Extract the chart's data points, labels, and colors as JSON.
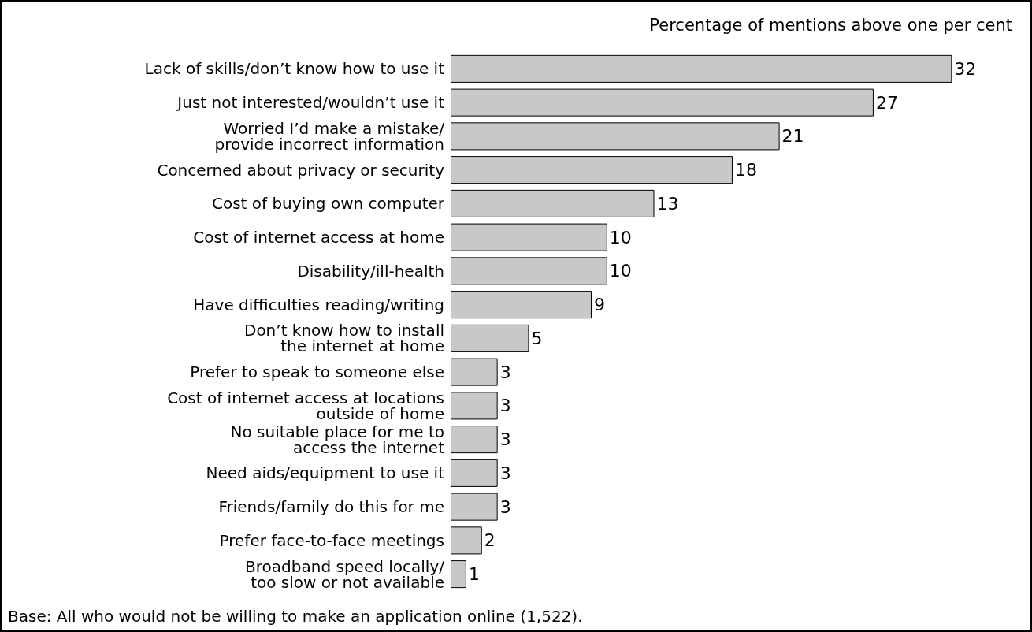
{
  "chart_data": {
    "type": "bar",
    "orientation": "horizontal",
    "title": "Percentage of mentions above one per cent",
    "categories": [
      "Lack of skills/don’t know how to use it",
      "Just not interested/wouldn’t use it",
      "Worried I’d make a mistake/\nprovide incorrect information",
      "Concerned about privacy or security",
      "Cost of buying own computer",
      "Cost of internet access at home",
      "Disability/ill-health",
      "Have difficulties reading/writing",
      "Don’t know how to install\nthe internet at home",
      "Prefer to speak to someone else",
      "Cost of internet access at locations\noutside of home",
      "No suitable place for me to\naccess the internet",
      "Need aids/equipment to use it",
      "Friends/family do this for me",
      "Prefer face-to-face meetings",
      "Broadband speed locally/\ntoo slow or not available"
    ],
    "values": [
      32,
      27,
      21,
      18,
      13,
      10,
      10,
      9,
      5,
      3,
      3,
      3,
      3,
      3,
      2,
      1
    ],
    "color": "#c8c8c8",
    "data_labels": true,
    "annotations": [
      "Base: All who would not be willing to make an application online (1,522)."
    ]
  }
}
